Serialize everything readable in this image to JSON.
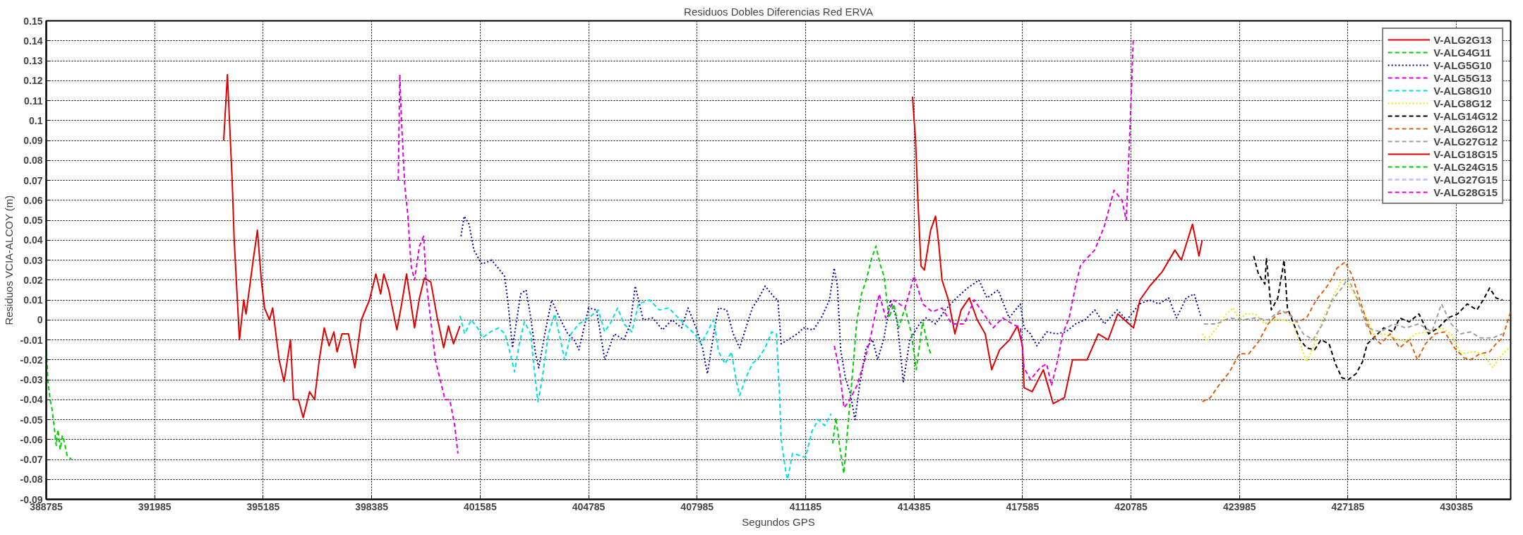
{
  "chart_data": {
    "type": "line",
    "title": "Residuos Dobles Diferencias Red ERVA",
    "xlabel": "Segundos GPS",
    "ylabel": "Residuos VCIA-ALCOY (m)",
    "xlim": [
      388785,
      431985
    ],
    "xticks": [
      388785,
      391985,
      395185,
      398385,
      401585,
      404785,
      407985,
      411185,
      414385,
      417585,
      420785,
      423985,
      427185,
      430385
    ],
    "ylim": [
      -0.09,
      0.15
    ],
    "yticks": [
      -0.09,
      -0.08,
      -0.07,
      -0.06,
      -0.05,
      -0.04,
      -0.03,
      -0.02,
      -0.01,
      0,
      0.01,
      0.02,
      0.03,
      0.04,
      0.05,
      0.06,
      0.07,
      0.08,
      0.09,
      0.1,
      0.11,
      0.12,
      0.13,
      0.14,
      0.15
    ],
    "grid": true,
    "legend": "top right",
    "marker": "none",
    "series": [
      {
        "name": "V-ALG2G13",
        "color": "#e00000",
        "line_style": "solid",
        "x": [
          394020,
          394130,
          394270,
          394330,
          394485,
          394610,
          394680,
          394890,
          395015,
          395130,
          395225,
          395370,
          395465,
          395655,
          395800,
          395990,
          396080,
          396225,
          396365,
          396555,
          396700,
          396840,
          396985,
          397130,
          397270,
          397365,
          397510,
          397700,
          397890,
          398080,
          398320,
          398510,
          398650,
          398745,
          398890,
          399130,
          399270,
          399415,
          399650,
          399795,
          399940,
          400130,
          400320,
          400510,
          400650,
          400800,
          400990
        ],
        "values": [
          0.09,
          0.123,
          0.07,
          0.04,
          -0.01,
          0.01,
          0.003,
          0.03,
          0.045,
          0.02,
          0.006,
          0.0,
          0.006,
          -0.02,
          -0.031,
          -0.01,
          -0.04,
          -0.04,
          -0.049,
          -0.036,
          -0.04,
          -0.02,
          -0.004,
          -0.013,
          -0.006,
          -0.016,
          -0.007,
          -0.007,
          -0.024,
          0.0,
          0.01,
          0.023,
          0.013,
          0.023,
          0.015,
          -0.005,
          0.008,
          0.023,
          -0.004,
          0.011,
          0.021,
          0.019,
          0.001,
          -0.014,
          -0.003,
          -0.012,
          -0.003
        ]
      },
      {
        "name": "V-ALG4G11",
        "color": "#00d000",
        "line_style": "dashed",
        "x": [
          388785,
          388830,
          388900,
          388960,
          389030,
          389080,
          389130,
          389200,
          389260,
          389330,
          389400,
          389530
        ],
        "values": [
          -0.012,
          -0.03,
          -0.04,
          -0.045,
          -0.055,
          -0.063,
          -0.055,
          -0.065,
          -0.058,
          -0.062,
          -0.068,
          -0.07
        ]
      },
      {
        "name": "V-ALG5G10",
        "color": "#0000b0",
        "line_style": "dotted",
        "x": [
          401020,
          401115,
          401260,
          401400,
          401640,
          401925,
          402305,
          402400,
          402540,
          402780,
          402940,
          403080,
          403220,
          403315,
          403505,
          403695,
          403930,
          404170,
          404360,
          404500,
          404785,
          405020,
          405260,
          405545,
          405825,
          406015,
          406160,
          406395,
          406680,
          406965,
          407245,
          407530,
          407720,
          407955,
          408145,
          408290,
          408475,
          408620,
          408860,
          409050,
          409240,
          409425,
          409615,
          409805,
          409995,
          410275,
          410370,
          410465,
          410655,
          410940,
          411130,
          411415,
          411650,
          411890,
          412030,
          412125,
          412220,
          412360,
          412505,
          412645,
          412785,
          412975,
          413165,
          413310,
          413500,
          413690,
          413880,
          414070,
          414260,
          414545,
          414735,
          415020,
          415305,
          415635,
          415965,
          416300,
          416535,
          416865,
          417190,
          417520,
          417630,
          417820,
          418010,
          418295,
          418580,
          418865,
          419150,
          419430,
          419715,
          420000,
          420380,
          420660,
          421040,
          421325,
          421610,
          421895,
          422130,
          422415,
          422650,
          422840
        ],
        "values": [
          0.042,
          0.052,
          0.048,
          0.035,
          0.028,
          0.03,
          0.022,
          0.01,
          -0.014,
          0.013,
          0.015,
          0.001,
          -0.017,
          -0.024,
          -0.006,
          0.01,
          0.001,
          -0.007,
          -0.01,
          -0.015,
          0.006,
          0.005,
          -0.02,
          -0.007,
          -0.01,
          -0.002,
          0.017,
          0.0,
          0.001,
          -0.005,
          0.0,
          -0.004,
          0.006,
          -0.004,
          -0.014,
          -0.027,
          -0.007,
          0.006,
          0.005,
          -0.007,
          -0.014,
          -0.004,
          0.006,
          0.011,
          0.017,
          0.011,
          0.01,
          -0.012,
          -0.01,
          -0.007,
          -0.004,
          -0.005,
          0.001,
          0.01,
          0.026,
          0.017,
          -0.015,
          -0.029,
          -0.037,
          -0.05,
          -0.032,
          -0.014,
          -0.01,
          -0.02,
          -0.009,
          0.01,
          0.0,
          -0.031,
          -0.01,
          -0.002,
          0.001,
          -0.002,
          0.005,
          0.011,
          0.016,
          0.02,
          0.011,
          0.015,
          0.001,
          0.008,
          -0.004,
          -0.007,
          -0.013,
          -0.006,
          -0.007,
          -0.006,
          -0.002,
          0.0,
          0.005,
          -0.002,
          0.005,
          0.0,
          0.008,
          0.01,
          0.008,
          0.011,
          0.001,
          0.011,
          0.013,
          0.002
        ]
      },
      {
        "name": "V-ALG5G13",
        "color": "#e000e0",
        "line_style": "dashed",
        "x": [
          399170,
          399215,
          399265,
          399360,
          399455,
          399550,
          399650,
          399795,
          399920,
          399990,
          400120,
          400265,
          400405,
          400550,
          400690,
          400835,
          400930
        ],
        "values": [
          0.07,
          0.123,
          0.1,
          0.068,
          0.052,
          0.027,
          0.02,
          0.037,
          0.042,
          0.02,
          0.001,
          -0.02,
          -0.03,
          -0.04,
          -0.04,
          -0.053,
          -0.067
        ]
      },
      {
        "name": "V-ALG8G10",
        "color": "#00e0e0",
        "line_style": "dashed",
        "x": [
          400990,
          401130,
          401320,
          401510,
          401650,
          401890,
          402130,
          402320,
          402460,
          402600,
          402740,
          402890,
          403080,
          403175,
          403290,
          403410,
          403600,
          403790,
          403980,
          404075,
          404265,
          404500,
          404785,
          405070,
          405260,
          405450,
          405640,
          405825,
          406065,
          406255,
          406585,
          406870,
          407150,
          407435,
          407720,
          407910,
          408100,
          408290,
          408475,
          408620,
          408810,
          409000,
          409145,
          409240,
          409425,
          409615,
          409805,
          409995,
          410180,
          410325,
          410420,
          410465,
          410610,
          410655,
          410800,
          411035,
          411185,
          411370,
          411560,
          411750,
          411940
        ],
        "values": [
          0.002,
          -0.007,
          0.0,
          -0.004,
          -0.009,
          -0.006,
          -0.004,
          -0.007,
          -0.016,
          -0.026,
          -0.012,
          -0.001,
          -0.007,
          -0.024,
          -0.041,
          -0.03,
          -0.007,
          0.003,
          -0.012,
          -0.02,
          -0.007,
          -0.002,
          0.001,
          0.005,
          -0.006,
          -0.001,
          0.006,
          -0.002,
          -0.006,
          0.008,
          0.01,
          0.005,
          0.006,
          0.001,
          -0.004,
          -0.007,
          -0.012,
          -0.006,
          0.0,
          -0.016,
          -0.022,
          -0.016,
          -0.031,
          -0.038,
          -0.029,
          -0.022,
          -0.019,
          -0.014,
          -0.006,
          -0.007,
          -0.038,
          -0.06,
          -0.077,
          -0.08,
          -0.067,
          -0.068,
          -0.069,
          -0.056,
          -0.05,
          -0.053,
          -0.047
        ]
      },
      {
        "name": "V-ALG8G12",
        "color": "#e8e800",
        "line_style": "dotted",
        "x": [
          422890,
          423030,
          423315,
          423600,
          423790,
          423980,
          424165,
          424450,
          424735,
          425020,
          425305,
          425585,
          425775,
          425965,
          426155,
          426345,
          426535,
          426725,
          427005,
          427190,
          427380,
          427670,
          427945,
          428240,
          428520,
          428900,
          429185,
          429565,
          429945,
          430230,
          430515,
          430895,
          431175,
          431460,
          431650,
          431935
        ],
        "values": [
          -0.007,
          -0.01,
          -0.004,
          0.003,
          0.006,
          0.0,
          0.003,
          0.003,
          -0.002,
          0.0,
          0.0,
          -0.002,
          -0.012,
          -0.021,
          -0.014,
          -0.004,
          0.004,
          0.011,
          0.02,
          0.018,
          0.013,
          0.003,
          -0.007,
          -0.007,
          -0.009,
          -0.011,
          -0.007,
          -0.006,
          -0.004,
          -0.007,
          -0.017,
          -0.016,
          -0.017,
          -0.024,
          -0.019,
          -0.014
        ]
      },
      {
        "name": "V-ALG14G12",
        "color": "#000000",
        "line_style": "dashed",
        "x": [
          424405,
          424545,
          424735,
          424780,
          424925,
          425115,
          425255,
          425300,
          425400,
          425585,
          425775,
          425965,
          426200,
          426390,
          426630,
          426815,
          427005,
          427190,
          427425,
          427615,
          427755,
          427945,
          428240,
          428520,
          428710,
          428995,
          429280,
          429565,
          429850,
          430135,
          430420,
          430705,
          430990,
          431175,
          431365,
          431555,
          431745
        ],
        "values": [
          0.032,
          0.023,
          0.018,
          0.031,
          0.005,
          0.011,
          0.025,
          0.03,
          0.006,
          -0.002,
          -0.01,
          -0.014,
          -0.015,
          -0.01,
          -0.012,
          -0.022,
          -0.029,
          -0.03,
          -0.027,
          -0.021,
          -0.012,
          -0.009,
          -0.004,
          -0.006,
          0.001,
          -0.001,
          0.003,
          -0.007,
          -0.004,
          0.001,
          0.003,
          0.008,
          0.005,
          0.01,
          0.016,
          0.011,
          0.01
        ]
      },
      {
        "name": "V-ALG26G12",
        "color": "#e06010",
        "line_style": "dashed",
        "x": [
          422890,
          423125,
          423410,
          423695,
          423980,
          424260,
          424545,
          424830,
          425115,
          425400,
          425685,
          425965,
          426250,
          426535,
          426725,
          426865,
          427100,
          427290,
          427480,
          427670,
          427860,
          428145,
          428430,
          428710,
          428995,
          429235,
          429470,
          429755,
          430040,
          430325,
          430610,
          430800,
          431080,
          431365,
          431555,
          431745,
          431980
        ],
        "values": [
          -0.041,
          -0.039,
          -0.032,
          -0.026,
          -0.017,
          -0.017,
          -0.011,
          -0.002,
          0.003,
          0.004,
          -0.001,
          0.001,
          0.01,
          0.016,
          0.021,
          0.026,
          0.029,
          0.023,
          0.013,
          0.003,
          -0.007,
          -0.012,
          -0.007,
          -0.014,
          -0.01,
          -0.02,
          -0.012,
          -0.007,
          -0.006,
          -0.014,
          -0.019,
          -0.02,
          -0.017,
          -0.016,
          -0.012,
          -0.009,
          0.004
        ]
      },
      {
        "name": "V-ALG27G12",
        "color": "#a0a0a0",
        "line_style": "dashed",
        "x": [
          422935,
          423315,
          423695,
          424070,
          424450,
          424830,
          425210,
          425585,
          425870,
          426155,
          426440,
          426725,
          427005,
          427190,
          427480,
          427755,
          428145,
          428520,
          428900,
          429280,
          429660,
          429945,
          430230,
          430515,
          430800,
          431080,
          431460,
          431745
        ],
        "values": [
          -0.002,
          -0.002,
          0.001,
          0.0,
          0.001,
          0.0,
          0.005,
          0.001,
          -0.007,
          -0.01,
          -0.002,
          0.01,
          0.016,
          0.021,
          0.01,
          -0.004,
          -0.006,
          -0.002,
          -0.004,
          -0.002,
          -0.006,
          0.008,
          -0.002,
          -0.007,
          -0.006,
          -0.009,
          -0.009,
          -0.007
        ]
      },
      {
        "name": "V-ALG18G15",
        "color": "#e00000",
        "line_style": "solid",
        "x": [
          414340,
          414430,
          414500,
          414590,
          414690,
          414875,
          415020,
          415115,
          415210,
          415400,
          415590,
          415775,
          416015,
          416250,
          416485,
          416675,
          416910,
          417200,
          417435,
          417585,
          417630,
          417870,
          418200,
          418490,
          418820,
          419060,
          419490,
          419820,
          420110,
          420395,
          420860,
          421050,
          421340,
          421700,
          422080,
          422270,
          422600,
          422790,
          422885
        ],
        "values": [
          0.112,
          0.09,
          0.06,
          0.027,
          0.025,
          0.045,
          0.052,
          0.038,
          0.02,
          0.01,
          -0.007,
          0.005,
          0.011,
          0.0,
          -0.007,
          -0.025,
          -0.015,
          -0.01,
          -0.003,
          -0.013,
          -0.034,
          -0.036,
          -0.025,
          -0.042,
          -0.039,
          -0.02,
          -0.02,
          -0.007,
          -0.01,
          0.003,
          -0.004,
          0.01,
          0.017,
          0.024,
          0.035,
          0.03,
          0.048,
          0.032,
          0.04
        ]
      },
      {
        "name": "V-ALG24G15",
        "color": "#00d000",
        "line_style": "dashed",
        "x": [
          411985,
          412080,
          412220,
          412315,
          412410,
          412550,
          412695,
          412835,
          412975,
          413120,
          413260,
          413400,
          413500,
          413645,
          413790,
          413930,
          414120,
          414310,
          414450,
          414640,
          414780,
          414875
        ],
        "values": [
          -0.062,
          -0.049,
          -0.067,
          -0.077,
          -0.058,
          -0.031,
          -0.001,
          0.013,
          0.02,
          0.03,
          0.037,
          0.027,
          0.022,
          0.001,
          0.008,
          -0.004,
          0.006,
          -0.007,
          -0.025,
          -0.001,
          -0.012,
          -0.017
        ]
      },
      {
        "name": "V-ALG27G15",
        "color": "#c8c8f0",
        "line_style": "dashed"
      },
      {
        "name": "V-ALG28G15",
        "color": "#e000e0",
        "line_style": "dashed",
        "x": [
          412035,
          412180,
          412320,
          412460,
          412700,
          412935,
          413125,
          413360,
          413550,
          413790,
          414120,
          414385,
          414640,
          414925,
          415210,
          415495,
          415870,
          416155,
          416440,
          416720,
          417000,
          417285,
          417520,
          417630,
          417820,
          418105,
          418295,
          418440,
          418625,
          418770,
          418960,
          419150,
          419290,
          419430,
          419715,
          420000,
          420285,
          420520,
          420645,
          420710,
          420805,
          420850
        ],
        "values": [
          -0.013,
          -0.025,
          -0.044,
          -0.041,
          -0.033,
          -0.02,
          -0.007,
          0.013,
          0.001,
          0.01,
          0.006,
          0.022,
          0.008,
          0.004,
          0.006,
          -0.002,
          -0.002,
          0.01,
          0.003,
          -0.004,
          0.001,
          -0.002,
          -0.004,
          -0.024,
          -0.03,
          -0.024,
          -0.022,
          -0.033,
          -0.02,
          -0.007,
          0.001,
          0.017,
          0.027,
          0.03,
          0.035,
          0.047,
          0.065,
          0.06,
          0.05,
          0.077,
          0.118,
          0.14
        ]
      }
    ]
  }
}
